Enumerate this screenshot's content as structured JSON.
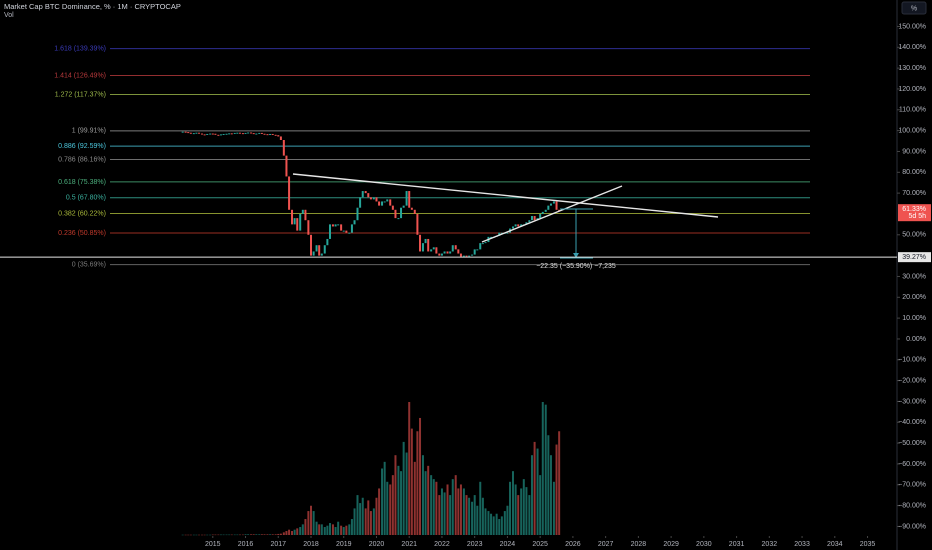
{
  "chart_data": {
    "type": "candlestick",
    "title": "Market Cap BTC Dominance, % · 1M · CRYPTOCAP",
    "scale_button": "%",
    "up_color": "#26a69a",
    "down_color": "#ef5350",
    "xlim": [
      2008.5,
      2035.9
    ],
    "xticks": [
      2015,
      2016,
      2017,
      2018,
      2019,
      2020,
      2021,
      2022,
      2023,
      2024,
      2025,
      2026,
      2027,
      2028,
      2029,
      2030,
      2031,
      2032,
      2033,
      2034,
      2035
    ],
    "ylim": [
      -94.1,
      162.7
    ],
    "yticks": [
      {
        "value": 150,
        "label": "150.00%"
      },
      {
        "value": 140,
        "label": "140.00%"
      },
      {
        "value": 130,
        "label": "130.00%"
      },
      {
        "value": 120,
        "label": "120.00%"
      },
      {
        "value": 110,
        "label": "110.00%"
      },
      {
        "value": 100,
        "label": "100.00%"
      },
      {
        "value": 90,
        "label": "90.00%"
      },
      {
        "value": 80,
        "label": "80.00%"
      },
      {
        "value": 70,
        "label": "70.00%"
      },
      {
        "value": 50,
        "label": "50.00%"
      },
      {
        "value": 30,
        "label": "30.00%"
      },
      {
        "value": 20,
        "label": "20.00%"
      },
      {
        "value": 10,
        "label": "10.00%"
      },
      {
        "value": 0,
        "label": "0.00%"
      },
      {
        "value": -10,
        "label": "−10.00%"
      },
      {
        "value": -20,
        "label": "−20.00%"
      },
      {
        "value": -30,
        "label": "−30.00%"
      },
      {
        "value": -40,
        "label": "−40.00%"
      },
      {
        "value": -50,
        "label": "−50.00%"
      },
      {
        "value": -60,
        "label": "−60.00%"
      },
      {
        "value": -70,
        "label": "−70.00%"
      },
      {
        "value": -80,
        "label": "−80.00%"
      },
      {
        "value": -90,
        "label": "−90.00%"
      }
    ],
    "x": [
      2014.08,
      2014.17,
      2014.25,
      2014.33,
      2014.42,
      2014.5,
      2014.58,
      2014.67,
      2014.75,
      2014.83,
      2014.92,
      2015.0,
      2015.08,
      2015.17,
      2015.25,
      2015.33,
      2015.42,
      2015.5,
      2015.58,
      2015.67,
      2015.75,
      2015.83,
      2015.92,
      2016.0,
      2016.08,
      2016.17,
      2016.25,
      2016.33,
      2016.42,
      2016.5,
      2016.58,
      2016.67,
      2016.75,
      2016.83,
      2016.92,
      2017.0,
      2017.08,
      2017.17,
      2017.25,
      2017.33,
      2017.42,
      2017.5,
      2017.58,
      2017.67,
      2017.75,
      2017.83,
      2017.92,
      2018.0,
      2018.08,
      2018.17,
      2018.25,
      2018.33,
      2018.42,
      2018.5,
      2018.58,
      2018.67,
      2018.75,
      2018.83,
      2018.92,
      2019.0,
      2019.08,
      2019.17,
      2019.25,
      2019.33,
      2019.42,
      2019.5,
      2019.58,
      2019.67,
      2019.75,
      2019.83,
      2019.92,
      2020.0,
      2020.08,
      2020.17,
      2020.25,
      2020.33,
      2020.42,
      2020.5,
      2020.58,
      2020.67,
      2020.75,
      2020.83,
      2020.92,
      2021.0,
      2021.08,
      2021.17,
      2021.25,
      2021.33,
      2021.42,
      2021.5,
      2021.58,
      2021.67,
      2021.75,
      2021.83,
      2021.92,
      2022.0,
      2022.08,
      2022.17,
      2022.25,
      2022.33,
      2022.42,
      2022.5,
      2022.58,
      2022.67,
      2022.75,
      2022.83,
      2022.92,
      2023.0,
      2023.08,
      2023.17,
      2023.25,
      2023.33,
      2023.42,
      2023.5,
      2023.58,
      2023.67,
      2023.75,
      2023.83,
      2023.92,
      2024.0,
      2024.08,
      2024.17,
      2024.25,
      2024.33,
      2024.42,
      2024.5,
      2024.58,
      2024.67,
      2024.75,
      2024.83,
      2024.92,
      2025.0,
      2025.08,
      2025.17,
      2025.25,
      2025.33,
      2025.42,
      2025.5,
      2025.58
    ],
    "series": [
      {
        "values": [
          99.5,
          99.3,
          99.0,
          98.5,
          98.8,
          99.0,
          98.6,
          98.2,
          98.0,
          98.4,
          98.6,
          98.5,
          98.0,
          97.8,
          98.2,
          98.4,
          98.5,
          98.7,
          98.6,
          98.9,
          99.0,
          98.8,
          98.7,
          98.9,
          99.1,
          98.8,
          98.5,
          98.6,
          98.9,
          98.5,
          98.3,
          98.2,
          98.4,
          98.0,
          97.8,
          97.2,
          95.5,
          88,
          78,
          62,
          55,
          58,
          52,
          60,
          62,
          57,
          50,
          40,
          42,
          45,
          40,
          41,
          45,
          48,
          55,
          54,
          55,
          55,
          52,
          52,
          51,
          51,
          55,
          57,
          63,
          68,
          71,
          70,
          68,
          67,
          68,
          66,
          64,
          66,
          66,
          67,
          64,
          62,
          58,
          58,
          63,
          64,
          71,
          63,
          62,
          60,
          50,
          42,
          46,
          48,
          42,
          43,
          44,
          41,
          40,
          41,
          42,
          41,
          42,
          45,
          43,
          41,
          39.5,
          40,
          39.5,
          40,
          40.5,
          43,
          43,
          46,
          46,
          46.5,
          49,
          49,
          49,
          49.5,
          51,
          51,
          51,
          51,
          53,
          54,
          55,
          54,
          55,
          55,
          56,
          57,
          59,
          57,
          58,
          60,
          61,
          62,
          64,
          65,
          66,
          62,
          61.33
        ]
      }
    ],
    "volume": {
      "name": "Vol",
      "lim": [
        0,
        100
      ],
      "values": [
        0.2,
        0.2,
        0.2,
        0.2,
        0.2,
        0.2,
        0.2,
        0.2,
        0.2,
        0.2,
        0.2,
        0.3,
        0.3,
        0.3,
        0.3,
        0.3,
        0.3,
        0.3,
        0.3,
        0.3,
        0.3,
        0.3,
        0.3,
        0.5,
        0.5,
        0.5,
        0.5,
        0.5,
        0.5,
        0.5,
        0.5,
        0.5,
        0.5,
        0.5,
        0.5,
        0.8,
        1,
        2,
        3,
        4,
        3,
        4,
        5,
        6,
        8,
        12,
        18,
        22,
        18,
        10,
        8,
        8,
        6,
        7,
        9,
        8,
        6,
        10,
        7,
        6,
        7,
        8,
        12,
        20,
        30,
        24,
        28,
        20,
        26,
        18,
        20,
        28,
        35,
        50,
        55,
        40,
        38,
        45,
        60,
        52,
        48,
        70,
        62,
        100,
        80,
        55,
        78,
        88,
        60,
        48,
        52,
        45,
        42,
        40,
        30,
        35,
        32,
        38,
        30,
        42,
        45,
        35,
        38,
        35,
        30,
        28,
        25,
        30,
        22,
        40,
        28,
        20,
        18,
        16,
        14,
        16,
        12,
        14,
        18,
        22,
        40,
        48,
        38,
        30,
        35,
        42,
        36,
        30,
        60,
        70,
        65,
        45,
        100,
        98,
        75,
        60,
        40,
        68,
        78
      ]
    },
    "fib_levels": [
      {
        "label": "1.618 (139.39%)",
        "value": 139.39,
        "color": "#3a3ab8"
      },
      {
        "label": "1.414 (126.49%)",
        "value": 126.49,
        "color": "#b8393c"
      },
      {
        "label": "1.272 (117.37%)",
        "value": 117.37,
        "color": "#9cb84a"
      },
      {
        "label": "1 (99.91%)",
        "value": 99.91,
        "color": "#9a9a9a"
      },
      {
        "label": "0.886 (92.59%)",
        "value": 92.59,
        "color": "#4cc6dc"
      },
      {
        "label": "0.786 (86.16%)",
        "value": 86.16,
        "color": "#8a8a8a"
      },
      {
        "label": "0.618 (75.38%)",
        "value": 75.38,
        "color": "#4caf7d"
      },
      {
        "label": "0.5 (67.80%)",
        "value": 67.8,
        "color": "#3ab09e"
      },
      {
        "label": "0.382 (60.22%)",
        "value": 60.22,
        "color": "#a9b83a"
      },
      {
        "label": "0.236 (50.85%)",
        "value": 50.85,
        "color": "#c0392b"
      },
      {
        "label": "0 (35.69%)",
        "value": 35.69,
        "color": "#7a7a7a"
      }
    ],
    "price_line": {
      "value": 39.27,
      "label": "39.27%"
    },
    "last_price": {
      "value": 61.33,
      "label": "61.33%",
      "countdown": "5d 5h"
    },
    "measure_label": "−22.35 (−35.90%) −7,235"
  }
}
